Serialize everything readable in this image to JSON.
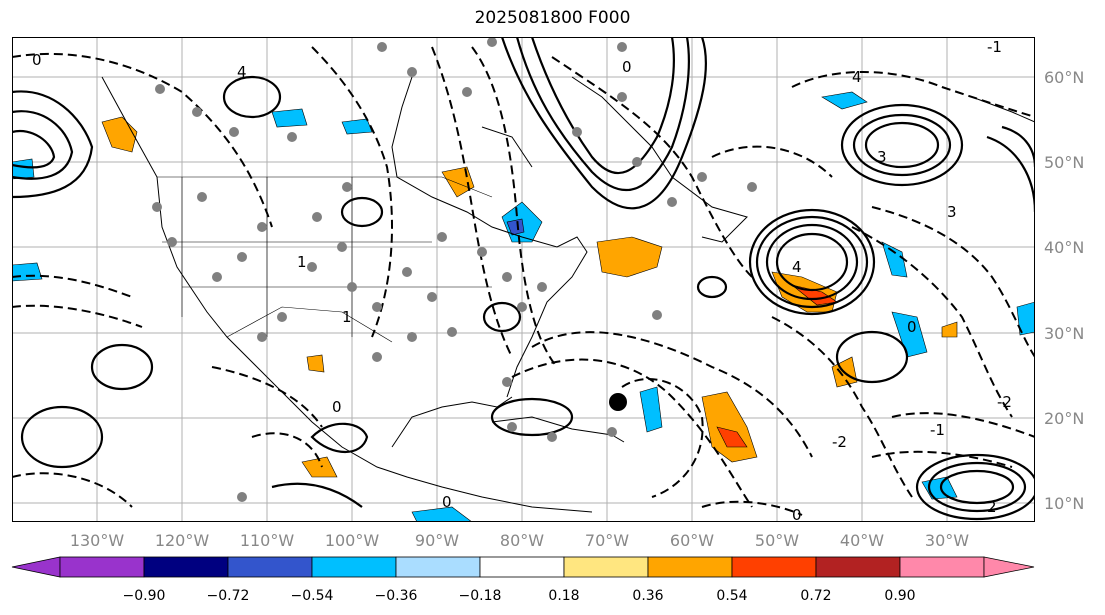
{
  "title": "2025081800 F000",
  "lon_labels": [
    "130°W",
    "120°W",
    "110°W",
    "100°W",
    "90°W",
    "80°W",
    "70°W",
    "60°W",
    "50°W",
    "40°W",
    "30°W"
  ],
  "lat_labels": [
    "60°N",
    "50°N",
    "40°N",
    "30°N",
    "20°N",
    "10°N"
  ],
  "colorbar": {
    "ticks": [
      "−0.90",
      "−0.72",
      "−0.54",
      "−0.36",
      "−0.18",
      "0.18",
      "0.36",
      "0.54",
      "0.72",
      "0.90"
    ],
    "colors": {
      "under": "#9933cc",
      "c1": "#000080",
      "c2": "#3355cc",
      "c3": "#00bfff",
      "c4": "#aaddff",
      "c5": "#ffffff",
      "c6": "#ffe680",
      "c7": "#ffa500",
      "c8": "#ff4000",
      "c9": "#b22222",
      "over": "#ff88aa"
    }
  },
  "contour_labels": [
    "0",
    "1",
    "2",
    "3",
    "4",
    "-1",
    "-2"
  ]
}
